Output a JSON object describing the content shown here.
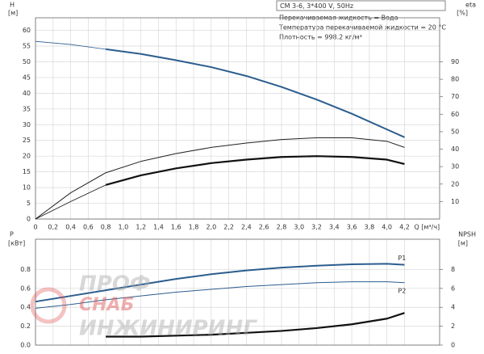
{
  "chart_data": [
    {
      "type": "line",
      "annotations": [
        "CM 3-6, 3*400 V, 50Hz",
        "Перекачиваемая жидкость = Вода",
        "Температура перекачиваемой жидкости = 20 °C",
        "Плотность = 998.2 кг/м³"
      ],
      "y_label": "H",
      "y_unit": "[м]",
      "y2_label": "eta",
      "y2_unit": "[%]",
      "x_label": "Q [м³/ч]",
      "x": [
        0,
        0.4,
        0.8,
        1.2,
        1.6,
        2.0,
        2.4,
        2.8,
        3.2,
        3.6,
        4.0,
        4.2
      ],
      "xlim": [
        0,
        4.6
      ],
      "ylim": [
        0,
        64
      ],
      "y2lim": [
        0,
        115.2
      ],
      "grid": true,
      "xticks": [
        0,
        {
          "value": 0.2,
          "label": "0,2"
        },
        {
          "value": 0.4,
          "label": "0,4"
        },
        {
          "value": 0.6,
          "label": "0,6"
        },
        {
          "value": 0.8,
          "label": "0,8"
        },
        {
          "value": 1.0,
          "label": "1,0"
        },
        {
          "value": 1.2,
          "label": "1,2"
        },
        {
          "value": 1.4,
          "label": "1,4"
        },
        {
          "value": 1.6,
          "label": "1,6"
        },
        {
          "value": 1.8,
          "label": "1,8"
        },
        {
          "value": 2.0,
          "label": "2,0"
        },
        {
          "value": 2.2,
          "label": "2,2"
        },
        {
          "value": 2.4,
          "label": "2,4"
        },
        {
          "value": 2.6,
          "label": "2,6"
        },
        {
          "value": 2.8,
          "label": "2,8"
        },
        {
          "value": 3.0,
          "label": "3,0"
        },
        {
          "value": 3.2,
          "label": "3,2"
        },
        {
          "value": 3.4,
          "label": "3,4"
        },
        {
          "value": 3.6,
          "label": "3,6"
        },
        {
          "value": 3.8,
          "label": "3,8"
        },
        {
          "value": 4.0,
          "label": "4,0"
        },
        {
          "value": 4.2,
          "label": "4,2"
        }
      ],
      "yticks": [
        0,
        5,
        10,
        15,
        20,
        25,
        30,
        35,
        40,
        45,
        50,
        55,
        60
      ],
      "y2ticks": [
        10,
        20,
        30,
        40,
        50,
        60,
        70,
        80,
        90
      ],
      "series": [
        {
          "color": "#2b5d8e",
          "width": 2,
          "thick_from": 0.8,
          "values": [
            56.5,
            55.5,
            54,
            52.5,
            50.5,
            48.3,
            45.5,
            42,
            38,
            33.5,
            28.5,
            26
          ]
        },
        {
          "color": "#222222",
          "width": 1,
          "axis": "y2",
          "values": [
            0,
            15,
            26.5,
            33,
            37.5,
            41,
            43.5,
            45.5,
            46.5,
            46.5,
            44.5,
            41
          ]
        },
        {
          "color": "#111111",
          "width": 2.2,
          "thick_from": 0.8,
          "axis": "y2",
          "values": [
            0,
            10,
            19.5,
            25,
            29,
            32,
            34,
            35.5,
            36,
            35.5,
            34,
            31.5
          ]
        }
      ]
    },
    {
      "type": "line",
      "y_label": "P",
      "y_unit": "[кВт]",
      "y2_label": "NPSH",
      "y2_unit": "[м]",
      "x": [
        0,
        0.4,
        0.8,
        1.2,
        1.6,
        2.0,
        2.4,
        2.8,
        3.2,
        3.6,
        4.0,
        4.2
      ],
      "xlim": [
        0,
        4.6
      ],
      "ylim": [
        0,
        1.12
      ],
      "y2lim": [
        0,
        11.2
      ],
      "grid": true,
      "xticks": [
        0,
        0.2,
        0.4,
        0.6,
        0.8,
        1.0,
        1.2,
        1.4,
        1.6,
        1.8,
        2.0,
        2.2,
        2.4,
        2.6,
        2.8,
        3.0,
        3.2,
        3.4,
        3.6,
        3.8,
        4.0,
        4.2
      ],
      "yticks": [
        {
          "value": 0,
          "label": "0.0"
        },
        0.2,
        0.4,
        0.6,
        0.8
      ],
      "y2ticks": [
        0,
        2,
        4,
        6,
        8
      ],
      "series": [
        {
          "name": "P1",
          "color": "#2b5d8e",
          "width": 2,
          "values": [
            0.46,
            0.52,
            0.58,
            0.64,
            0.7,
            0.75,
            0.79,
            0.82,
            0.84,
            0.855,
            0.86,
            0.85
          ]
        },
        {
          "name": "P2",
          "color": "#2b5d8e",
          "width": 1,
          "values": [
            0.39,
            0.43,
            0.48,
            0.52,
            0.56,
            0.59,
            0.62,
            0.64,
            0.66,
            0.67,
            0.67,
            0.66
          ]
        },
        {
          "color": "#111111",
          "width": 2.2,
          "axis": "y2",
          "values": [
            null,
            null,
            0.9,
            0.9,
            1.0,
            1.1,
            1.3,
            1.5,
            1.8,
            2.2,
            2.8,
            3.4
          ]
        }
      ]
    }
  ],
  "watermark": [
    "ПРОФ",
    "СНАБ",
    "ИНЖИНИРИНГ"
  ]
}
